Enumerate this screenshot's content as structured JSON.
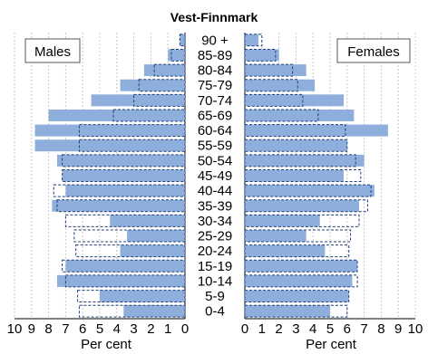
{
  "chart_data": {
    "type": "bar",
    "title": "Vest-Finnmark",
    "left_panel": "Males",
    "right_panel": "Females",
    "xlabel": "Per cent",
    "xlim": [
      0,
      10
    ],
    "x_ticks_left": [
      "10",
      "9",
      "8",
      "7",
      "6",
      "5",
      "4",
      "3",
      "2",
      "1",
      "0"
    ],
    "x_ticks_right": [
      "0",
      "1",
      "2",
      "3",
      "4",
      "5",
      "6",
      "7",
      "8",
      "9",
      "10"
    ],
    "categories": [
      "0-4",
      "5-9",
      "10-14",
      "15-19",
      "20-24",
      "25-29",
      "30-34",
      "35-39",
      "40-44",
      "45-49",
      "50-54",
      "55-59",
      "60-64",
      "65-69",
      "70-74",
      "75-79",
      "80-84",
      "85-89",
      "90 +"
    ],
    "series": [
      {
        "side": "males",
        "kind": "filled",
        "values": [
          3.6,
          5.0,
          7.5,
          7.0,
          3.8,
          3.4,
          4.4,
          7.8,
          7.0,
          7.2,
          7.5,
          8.8,
          8.8,
          8.0,
          5.5,
          3.8,
          2.4,
          1.0,
          0.3
        ]
      },
      {
        "side": "males",
        "kind": "outline",
        "values": [
          6.2,
          6.3,
          7.0,
          7.2,
          6.4,
          6.5,
          7.0,
          7.5,
          7.7,
          7.2,
          7.2,
          6.2,
          6.2,
          4.2,
          3.0,
          2.7,
          1.8,
          0.8,
          0.3
        ]
      },
      {
        "side": "females",
        "kind": "filled",
        "values": [
          5.0,
          6.1,
          6.3,
          6.6,
          4.7,
          3.6,
          4.4,
          6.7,
          7.6,
          5.8,
          7.0,
          6.0,
          8.4,
          6.4,
          5.8,
          4.1,
          3.6,
          2.0,
          0.8
        ]
      },
      {
        "side": "females",
        "kind": "outline",
        "values": [
          6.0,
          6.1,
          6.6,
          6.6,
          6.1,
          6.2,
          6.7,
          7.2,
          7.4,
          6.8,
          6.5,
          6.0,
          5.9,
          4.3,
          3.4,
          3.1,
          2.8,
          1.8,
          1.0
        ]
      }
    ]
  }
}
